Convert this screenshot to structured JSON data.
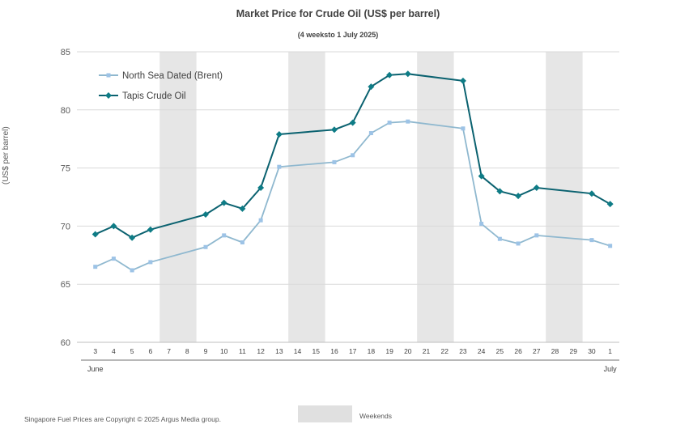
{
  "chart_data": {
    "type": "line",
    "title": "Market Price for Crude  Oil (US$ per barrel)",
    "subtitle": "(4 weeksto 1 July 2025)",
    "ylabel": "(US$ per barrel)",
    "ylim": [
      60,
      85
    ],
    "yticks": [
      60,
      65,
      70,
      75,
      80,
      85
    ],
    "grid": true,
    "legend_position": "top-left",
    "x_tick_labels": [
      "3",
      "4",
      "5",
      "6",
      "7",
      "8",
      "9",
      "10",
      "11",
      "12",
      "13",
      "14",
      "15",
      "16",
      "17",
      "18",
      "19",
      "20",
      "21",
      "22",
      "23",
      "24",
      "25",
      "26",
      "27",
      "28",
      "29",
      "30",
      "1"
    ],
    "month_labels": [
      {
        "label": "June",
        "at": "3"
      },
      {
        "label": "July",
        "at": "1"
      }
    ],
    "weekends": [
      [
        "7",
        "8"
      ],
      [
        "14",
        "15"
      ],
      [
        "21",
        "22"
      ],
      [
        "28",
        "29"
      ]
    ],
    "series": [
      {
        "name": "North Sea Dated (Brent)",
        "color": "#8fb8cf",
        "marker_color": "#9dc3e6",
        "marker": "square",
        "points": [
          {
            "x": "3",
            "y": 66.5
          },
          {
            "x": "4",
            "y": 67.2
          },
          {
            "x": "5",
            "y": 66.2
          },
          {
            "x": "6",
            "y": 66.9
          },
          {
            "x": "9",
            "y": 68.2
          },
          {
            "x": "10",
            "y": 69.2
          },
          {
            "x": "11",
            "y": 68.6
          },
          {
            "x": "12",
            "y": 70.5
          },
          {
            "x": "13",
            "y": 75.1
          },
          {
            "x": "16",
            "y": 75.5
          },
          {
            "x": "17",
            "y": 76.1
          },
          {
            "x": "18",
            "y": 78.0
          },
          {
            "x": "19",
            "y": 78.9
          },
          {
            "x": "20",
            "y": 79.0
          },
          {
            "x": "23",
            "y": 78.4
          },
          {
            "x": "24",
            "y": 70.2
          },
          {
            "x": "25",
            "y": 68.9
          },
          {
            "x": "26",
            "y": 68.5
          },
          {
            "x": "27",
            "y": 69.2
          },
          {
            "x": "30",
            "y": 68.8
          },
          {
            "x": "1",
            "y": 68.3
          }
        ]
      },
      {
        "name": "Tapis Crude Oil",
        "color": "#0b6270",
        "marker_color": "#0e7c86",
        "marker": "diamond",
        "points": [
          {
            "x": "3",
            "y": 69.3
          },
          {
            "x": "4",
            "y": 70.0
          },
          {
            "x": "5",
            "y": 69.0
          },
          {
            "x": "6",
            "y": 69.7
          },
          {
            "x": "9",
            "y": 71.0
          },
          {
            "x": "10",
            "y": 72.0
          },
          {
            "x": "11",
            "y": 71.5
          },
          {
            "x": "12",
            "y": 73.3
          },
          {
            "x": "13",
            "y": 77.9
          },
          {
            "x": "16",
            "y": 78.3
          },
          {
            "x": "17",
            "y": 78.9
          },
          {
            "x": "18",
            "y": 82.0
          },
          {
            "x": "19",
            "y": 83.0
          },
          {
            "x": "20",
            "y": 83.1
          },
          {
            "x": "23",
            "y": 82.5
          },
          {
            "x": "24",
            "y": 74.3
          },
          {
            "x": "25",
            "y": 73.0
          },
          {
            "x": "26",
            "y": 72.6
          },
          {
            "x": "27",
            "y": 73.3
          },
          {
            "x": "30",
            "y": 72.8
          },
          {
            "x": "1",
            "y": 71.9
          }
        ]
      }
    ],
    "weekend_legend_label": "Weekends",
    "weekend_color": "#e6e6e6"
  },
  "footer": {
    "copyright": "Singapore Fuel Prices are Copyright © 2025 Argus Media group."
  }
}
